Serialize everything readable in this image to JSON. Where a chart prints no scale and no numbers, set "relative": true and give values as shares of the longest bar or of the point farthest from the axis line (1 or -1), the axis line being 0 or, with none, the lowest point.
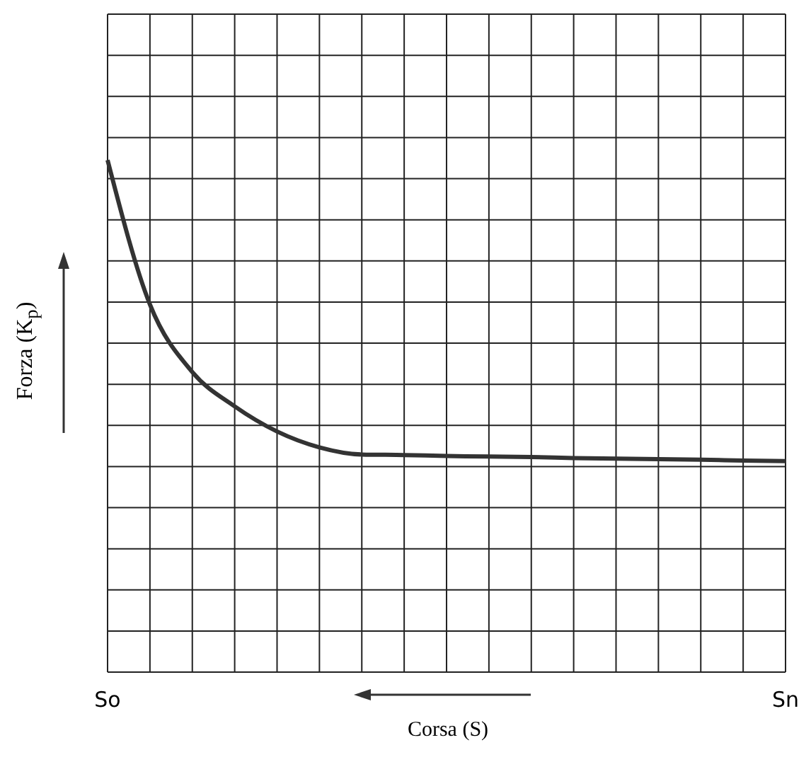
{
  "chart_data": {
    "type": "line",
    "relative": true,
    "xlabel": "Corsa (S)",
    "ylabel": "Forza (K$_{p}$)",
    "categories": [
      "So",
      null,
      null,
      null,
      null,
      null,
      null,
      null,
      null,
      null,
      null,
      null,
      null,
      null,
      null,
      null,
      "Sn"
    ],
    "series": [
      {
        "color": "#333333",
        "values": [
          1,
          0.718,
          0.586,
          0.519,
          0.47,
          0.439,
          0.425,
          0.424,
          0.422,
          0.421,
          0.42,
          0.418,
          0.417,
          0.416,
          0.415,
          0.413,
          0.412
        ]
      }
    ],
    "grid": true,
    "marker": "none",
    "line_style": "solid"
  }
}
